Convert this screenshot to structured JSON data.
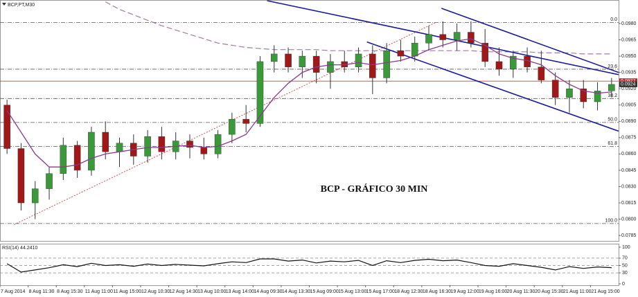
{
  "chart_data": {
    "type": "candlestick",
    "header": "BCP,PT,M30",
    "title": "BCP - GRÁFICO 30 MIN",
    "categories": [
      "7 Aug 2014",
      null,
      "8 Aug 11:30",
      null,
      "8 Aug 15:30",
      null,
      "11 Aug 11:00",
      null,
      "11 Aug 15:00",
      null,
      "12 Aug 10:30",
      null,
      "12 Aug 14:30",
      null,
      "13 Aug 10:00",
      null,
      "13 Aug 14:00",
      null,
      "14 Aug 09:30",
      null,
      "14 Aug 13:30",
      null,
      "15 Aug 09:00",
      null,
      "15 Aug 13:00",
      null,
      "15 Aug 17:00",
      null,
      "18 Aug 12:30",
      null,
      "18 Aug 16:30",
      null,
      "19 Aug 12:00",
      null,
      "19 Aug 16:00",
      null,
      "20 Aug 11:30",
      null,
      "20 Aug 15:30",
      null,
      "21 Aug 11:00",
      null,
      "21 Aug 15:00",
      null
    ],
    "candles": {
      "open": [
        0.0905,
        0.0865,
        0.0815,
        0.0828,
        0.0842,
        0.0868,
        0.0845,
        0.088,
        0.0862,
        0.087,
        0.0858,
        0.0876,
        0.0862,
        0.0872,
        0.0866,
        0.086,
        0.0878,
        0.0892,
        0.0888,
        0.0945,
        0.0952,
        0.094,
        0.095,
        0.0935,
        0.0945,
        0.094,
        0.0952,
        0.093,
        0.0955,
        0.095,
        0.0962,
        0.097,
        0.0965,
        0.0972,
        0.0962,
        0.0945,
        0.0938,
        0.095,
        0.094,
        0.0928,
        0.0912,
        0.092,
        0.0908,
        0.0918
      ],
      "high": [
        0.091,
        0.087,
        0.0835,
        0.0848,
        0.0875,
        0.0872,
        0.0885,
        0.089,
        0.0875,
        0.0878,
        0.0882,
        0.0885,
        0.088,
        0.0878,
        0.0875,
        0.0882,
        0.0898,
        0.0905,
        0.095,
        0.096,
        0.0958,
        0.0955,
        0.0955,
        0.0952,
        0.0955,
        0.0958,
        0.096,
        0.0962,
        0.0965,
        0.0968,
        0.0978,
        0.0982,
        0.098,
        0.0982,
        0.0975,
        0.0958,
        0.0955,
        0.0958,
        0.0955,
        0.0935,
        0.0928,
        0.0928,
        0.0926,
        0.093
      ],
      "low": [
        0.086,
        0.0808,
        0.08,
        0.0818,
        0.0836,
        0.0838,
        0.084,
        0.0855,
        0.0848,
        0.085,
        0.0852,
        0.0855,
        0.0855,
        0.0856,
        0.0855,
        0.0856,
        0.087,
        0.088,
        0.0885,
        0.0935,
        0.0935,
        0.093,
        0.0925,
        0.092,
        0.0935,
        0.0935,
        0.0915,
        0.0925,
        0.0945,
        0.0945,
        0.0955,
        0.0958,
        0.0955,
        0.0958,
        0.094,
        0.0932,
        0.093,
        0.0935,
        0.0925,
        0.0905,
        0.0898,
        0.0902,
        0.09,
        0.0912
      ],
      "close": [
        0.0865,
        0.0815,
        0.0828,
        0.0842,
        0.0868,
        0.0845,
        0.088,
        0.0862,
        0.087,
        0.0858,
        0.0876,
        0.0862,
        0.0872,
        0.0866,
        0.086,
        0.0878,
        0.0892,
        0.0888,
        0.0945,
        0.0952,
        0.094,
        0.095,
        0.0935,
        0.0945,
        0.094,
        0.0952,
        0.093,
        0.0955,
        0.095,
        0.0962,
        0.097,
        0.0965,
        0.0972,
        0.0962,
        0.0945,
        0.0938,
        0.095,
        0.094,
        0.0928,
        0.0912,
        0.092,
        0.0908,
        0.0918,
        0.0924
      ]
    },
    "up_color": "#3a9a3a",
    "down_color": "#a01818",
    "ma": {
      "color": "#8b3a8b",
      "values": [
        0.09,
        0.088,
        0.086,
        0.0848,
        0.0848,
        0.085,
        0.0856,
        0.086,
        0.0862,
        0.0864,
        0.0866,
        0.0866,
        0.0867,
        0.0868,
        0.0866,
        0.0867,
        0.0872,
        0.0878,
        0.0895,
        0.0912,
        0.0925,
        0.0935,
        0.094,
        0.0942,
        0.0942,
        0.0944,
        0.0942,
        0.0944,
        0.0946,
        0.095,
        0.0956,
        0.096,
        0.0964,
        0.0966,
        0.096,
        0.0952,
        0.0948,
        0.0946,
        0.0942,
        0.0932,
        0.0924,
        0.0918,
        0.0916,
        0.0917
      ]
    },
    "ma_long": {
      "color": "#a27ba2",
      "values": [
        null,
        null,
        null,
        null,
        null,
        null,
        null,
        0.1,
        0.0993,
        0.0988,
        0.0983,
        0.0978,
        0.0974,
        0.097,
        0.0966,
        0.0962,
        0.096,
        0.0958,
        0.0957,
        0.0956,
        0.0956,
        0.0956,
        0.0956,
        0.0955,
        0.0955,
        0.0955,
        0.0955,
        0.0955,
        0.0955,
        0.0955,
        0.0955,
        0.0955,
        0.0955,
        0.0955,
        0.0954,
        0.0954,
        0.0954,
        0.0954,
        0.0953,
        0.0953,
        0.0953,
        0.0952,
        0.0952,
        0.0952
      ]
    },
    "lines": [
      {
        "color": "#1a1a9a",
        "x": [
          18.5,
          43.5
        ],
        "y": [
          0.1001,
          0.0933
        ]
      },
      {
        "color": "#1a1a9a",
        "x": [
          25.6,
          43.5
        ],
        "y": [
          0.0963,
          0.0881
        ]
      },
      {
        "color": "#1a1a9a",
        "x": [
          30.9,
          43.5
        ],
        "y": [
          0.0994,
          0.0935
        ]
      },
      {
        "color": "#c85050",
        "x": [
          0.5,
          30.5
        ],
        "y": [
          0.0795,
          0.0981
        ],
        "dotted": true
      }
    ],
    "price_line": {
      "color": "#c04040",
      "value": 0.0927
    },
    "price_labels": [
      {
        "value": 0.0927,
        "label": "0.0927",
        "color": "#c02020"
      },
      {
        "value": 0.0924,
        "label": "0.0924",
        "color": "#333"
      }
    ],
    "fib": [
      {
        "value": 0.0981,
        "label": "0.0"
      },
      {
        "value": 0.0938,
        "label": "23.6"
      },
      {
        "value": 0.0911,
        "label": "38.2"
      },
      {
        "value": 0.0889,
        "label": "50.0"
      },
      {
        "value": 0.0867,
        "label": "61.8"
      },
      {
        "value": 0.0796,
        "label": "100.0"
      }
    ],
    "ylim": [
      0.078,
      0.1001
    ],
    "yticks": [
      {
        "value": 0.098,
        "label": "0.0980"
      },
      {
        "value": 0.0965,
        "label": "0.0965"
      },
      {
        "value": 0.095,
        "label": "0.0950"
      },
      {
        "value": 0.0935,
        "label": "0.0935"
      },
      {
        "value": 0.092,
        "label": "0.0920"
      },
      {
        "value": 0.0905,
        "label": "0.0905"
      },
      {
        "value": 0.089,
        "label": "0.0890"
      },
      {
        "value": 0.0875,
        "label": "0.0875"
      },
      {
        "value": 0.086,
        "label": "0.0860"
      },
      {
        "value": 0.0845,
        "label": "0.0845"
      },
      {
        "value": 0.083,
        "label": "0.0830"
      },
      {
        "value": 0.0815,
        "label": "0.0815"
      },
      {
        "value": 0.08,
        "label": "0.0800"
      },
      {
        "value": 0.0785,
        "label": "0.0785"
      }
    ],
    "rsi": {
      "label": "RSI(14) 44.2410",
      "color": "#111",
      "values": [
        55,
        32,
        38,
        44,
        52,
        47,
        56,
        50,
        52,
        48,
        54,
        50,
        53,
        51,
        49,
        55,
        60,
        58,
        68,
        68,
        62,
        65,
        57,
        62,
        60,
        64,
        50,
        63,
        58,
        64,
        67,
        63,
        65,
        58,
        50,
        48,
        55,
        50,
        45,
        38,
        47,
        42,
        46,
        44.241
      ],
      "ylim": [
        0,
        100
      ],
      "yticks": [
        0,
        30,
        50,
        70,
        100
      ],
      "levels": [
        30,
        50,
        70
      ]
    }
  }
}
